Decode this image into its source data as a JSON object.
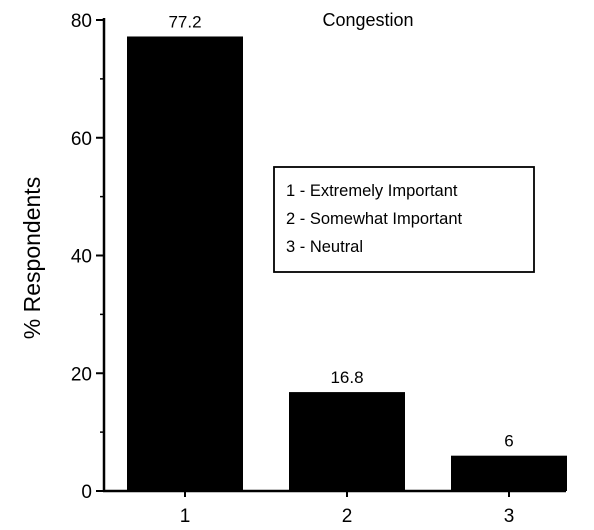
{
  "chart_data": {
    "type": "bar",
    "title": "Congestion",
    "xlabel": "",
    "ylabel": "% Respondents",
    "categories": [
      "1",
      "2",
      "3"
    ],
    "values": [
      77.2,
      16.8,
      6
    ],
    "value_labels": [
      "77.2",
      "16.8",
      "6"
    ],
    "ylim": [
      0,
      80
    ],
    "yticks": [
      "0",
      "20",
      "40",
      "60",
      "80"
    ],
    "grid": false,
    "bar_color": "#000000",
    "legend_placement": "center-right",
    "legend": [
      "1 - Extremely Important",
      "2 - Somewhat Important",
      "3 - Neutral"
    ]
  }
}
